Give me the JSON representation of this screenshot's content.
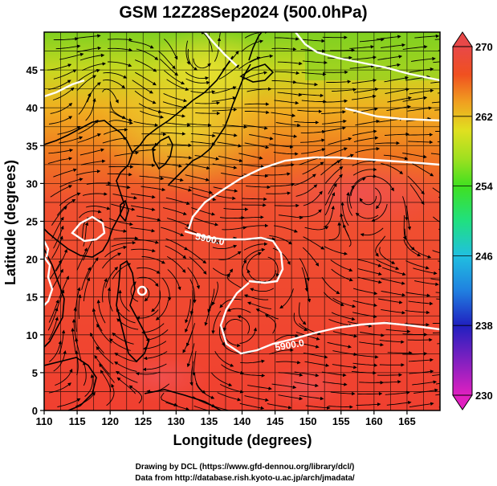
{
  "title": "GSM 12Z28Sep2024 (500.0hPa)",
  "xlabel": "Longitude (degrees)",
  "ylabel": "Latitude  (degrees)",
  "credits": [
    "Drawing by DCL (https://www.gfd-dennou.org/library/dcl/)",
    "Data from http://database.rish.kyoto-u.ac.jp/arch/jmadata/"
  ],
  "map": {
    "lon_range": [
      110,
      170
    ],
    "lat_range": [
      0,
      50
    ],
    "lon_ticks": [
      "110",
      "115",
      "120",
      "125",
      "130",
      "135",
      "140",
      "145",
      "150",
      "155",
      "160",
      "165"
    ],
    "lat_ticks": [
      "0",
      "5",
      "10",
      "15",
      "20",
      "25",
      "30",
      "35",
      "40",
      "45"
    ]
  },
  "colorbar": {
    "ticks": [
      "230",
      "238",
      "246",
      "254",
      "262",
      "270"
    ],
    "range": [
      230,
      270
    ],
    "colors": [
      "#e020c0",
      "#8020c0",
      "#2020c0",
      "#2080e0",
      "#20c0e0",
      "#20e080",
      "#40e020",
      "#a0e020",
      "#e0e020",
      "#f0a020",
      "#f05020",
      "#f03030",
      "#e84848"
    ]
  },
  "contours": [
    {
      "label": "5900.0"
    },
    {
      "label": "5900.0"
    }
  ],
  "colors": {
    "contour": "#ffffff",
    "coast": "#000000",
    "streamline": "#000000"
  }
}
